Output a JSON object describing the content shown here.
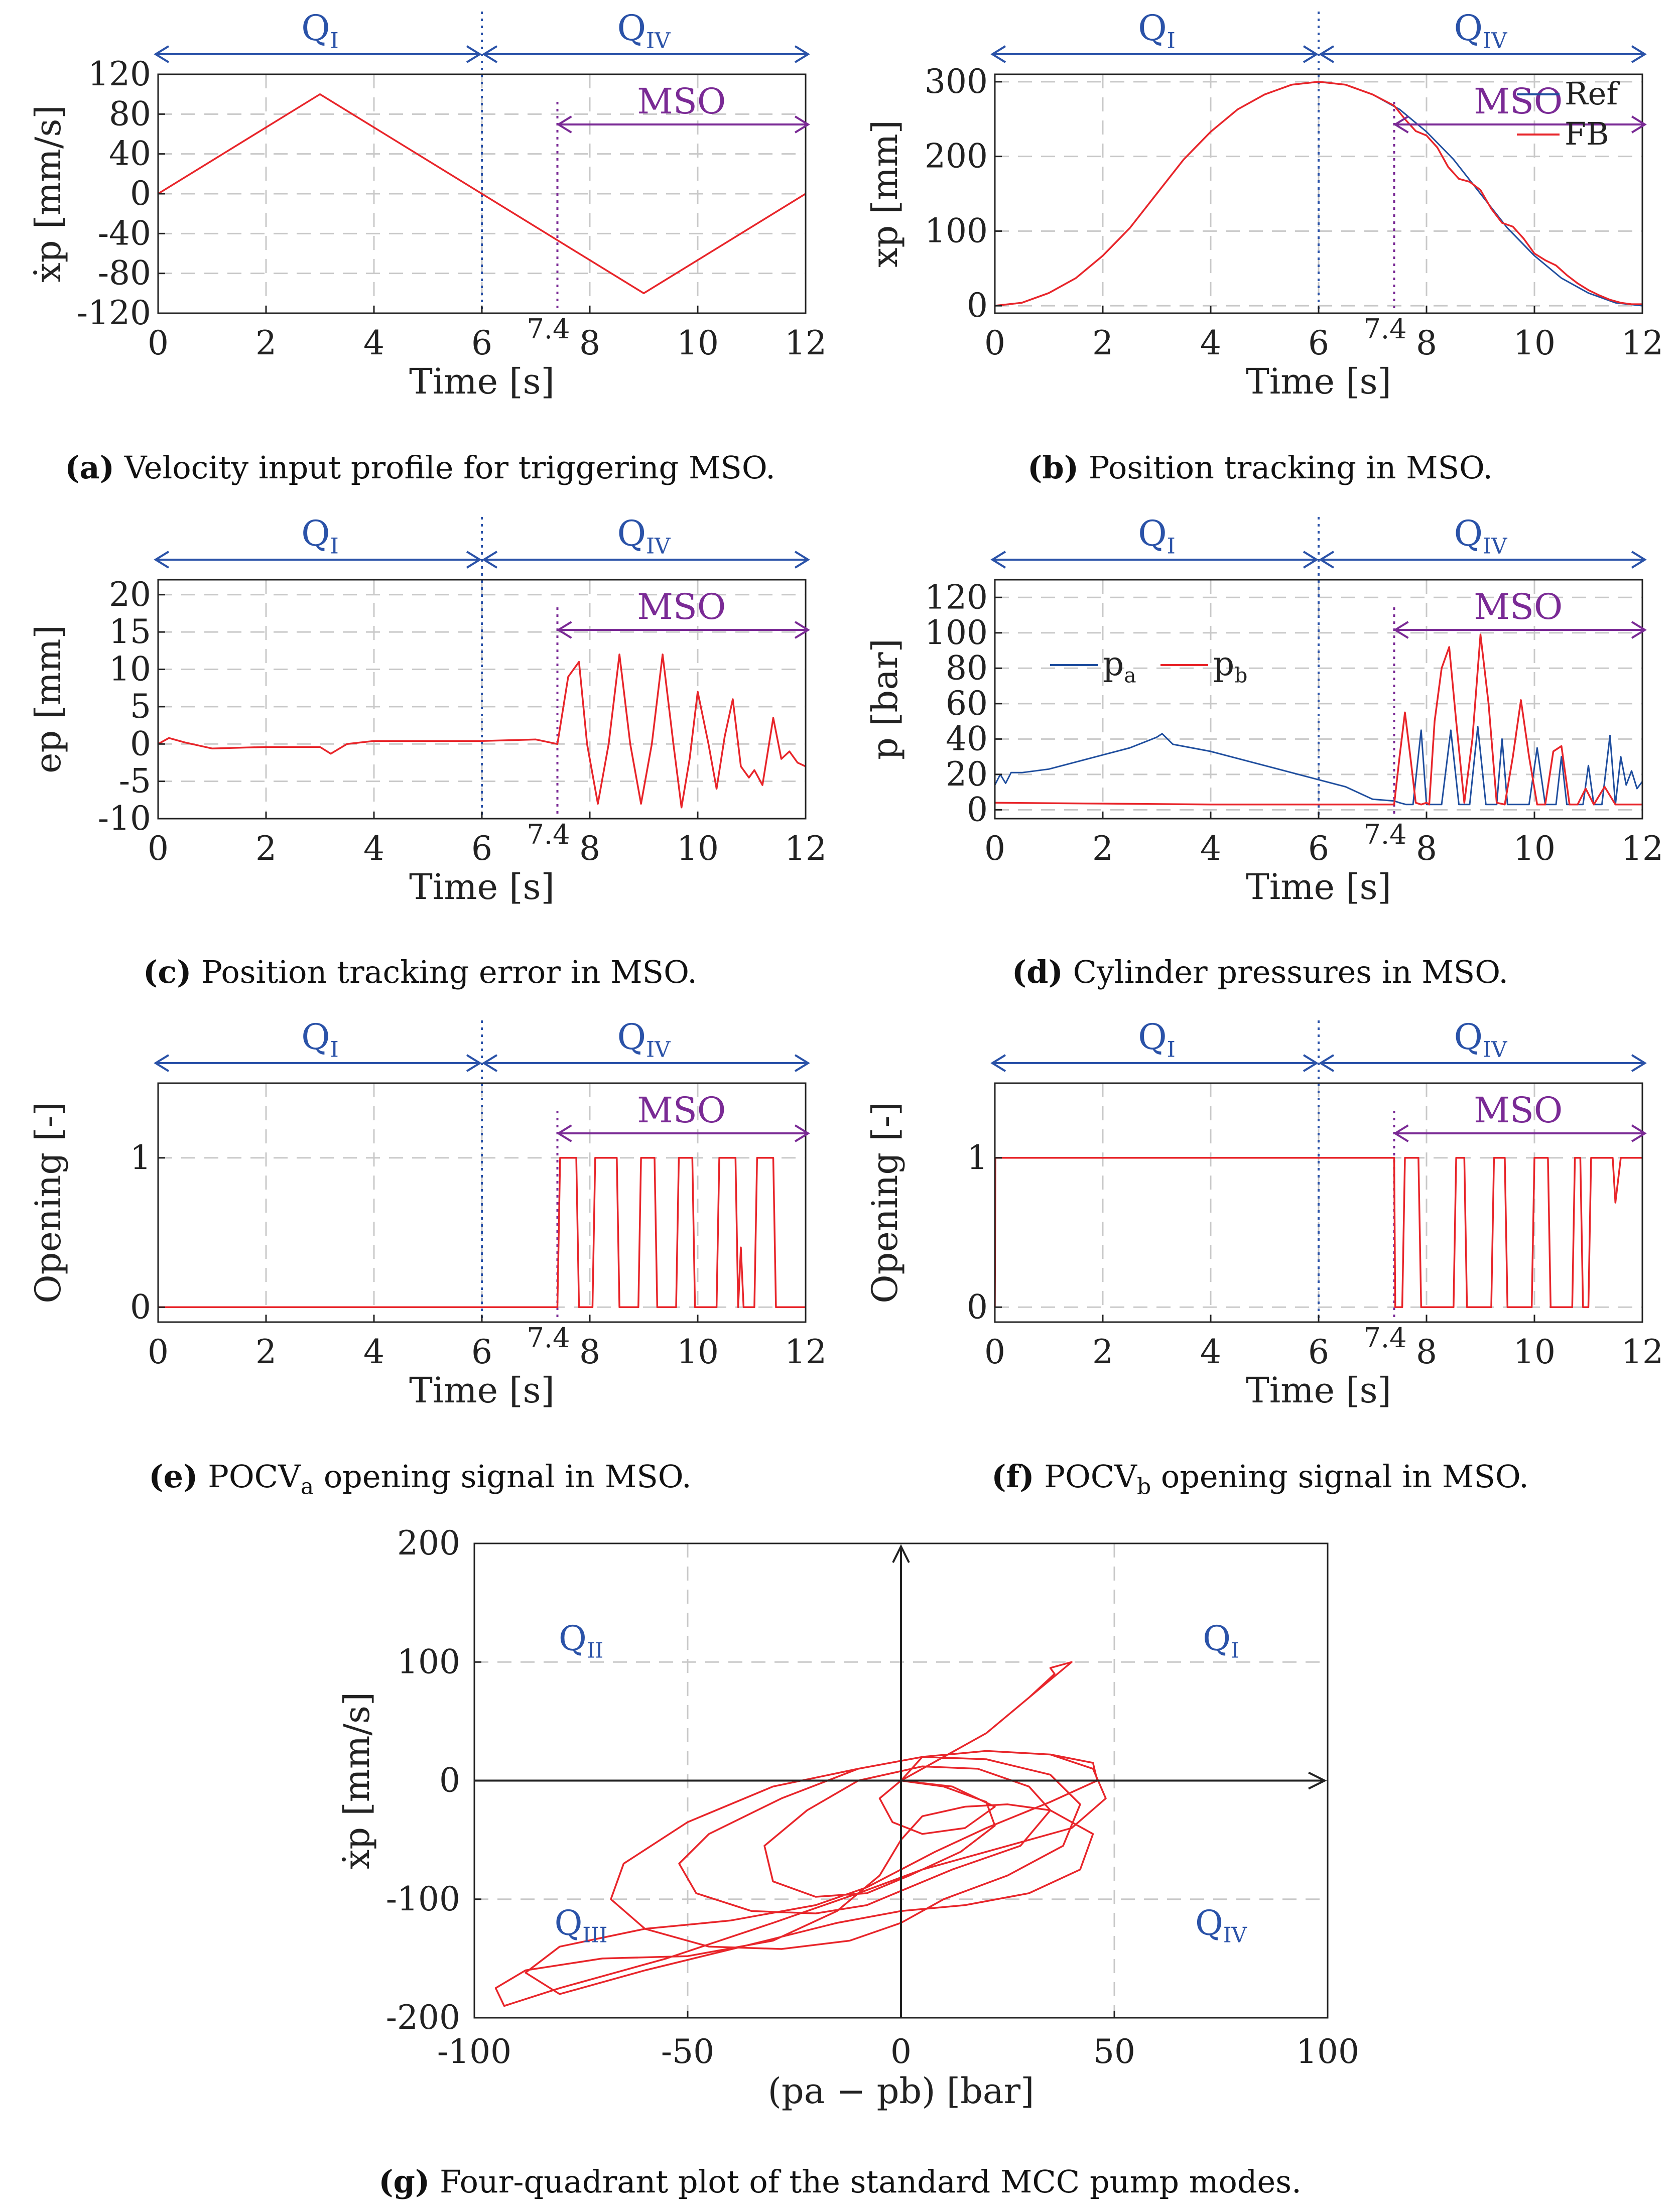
{
  "colors": {
    "series_red": "#e8252a",
    "series_blue": "#1f4e9e",
    "quadrant": "#2a52a8",
    "mso": "#7a2a95",
    "axis": "#222222",
    "grid": "#c8c8c8"
  },
  "common": {
    "time_label": "Time [s]",
    "mso_label": "MSO",
    "t_mso_label": "7.4",
    "x_ticks": [
      0,
      2,
      4,
      6,
      8,
      10,
      12
    ],
    "quadrant_left": {
      "main": "Q",
      "sub": "I"
    },
    "quadrant_right": {
      "main": "Q",
      "sub": "IV"
    }
  },
  "captions": {
    "a": {
      "label": "(a)",
      "text": "Velocity input profile for triggering MSO."
    },
    "b": {
      "label": "(b)",
      "text": "Position tracking in MSO."
    },
    "c": {
      "label": "(c)",
      "text": "Position tracking error in MSO."
    },
    "d": {
      "label": "(d)",
      "text": "Cylinder pressures in MSO."
    },
    "e": {
      "label": "(e)",
      "text_pre": "POCV",
      "sub": "a",
      "text_post": " opening signal in MSO."
    },
    "f": {
      "label": "(f)",
      "text_pre": "POCV",
      "sub": "b",
      "text_post": " opening signal in MSO."
    },
    "g": {
      "label": "(g)",
      "text": "Four-quadrant plot of the standard MCC pump modes."
    }
  },
  "chart_data": [
    {
      "id": "a",
      "type": "line",
      "ylabel": "ẋp [mm/s]",
      "xlim": [
        0,
        12
      ],
      "ylim": [
        -120,
        120
      ],
      "yticks": [
        -120,
        -80,
        -40,
        0,
        40,
        80,
        120
      ],
      "ytick_labels": [
        "-120",
        "-80",
        "-40",
        "0",
        "40",
        "80",
        "120"
      ],
      "series": [
        {
          "name": "velocity",
          "color": "red",
          "x": [
            0,
            3,
            9,
            12
          ],
          "y": [
            0,
            100,
            -100,
            0
          ]
        }
      ]
    },
    {
      "id": "b",
      "type": "line",
      "ylabel": "xp [mm]",
      "xlim": [
        0,
        12
      ],
      "ylim": [
        -10,
        310
      ],
      "yticks": [
        0,
        100,
        200,
        300
      ],
      "ytick_labels": [
        "0",
        "100",
        "200",
        "300"
      ],
      "legend": [
        "Ref",
        "FB"
      ],
      "series": [
        {
          "name": "Ref",
          "color": "blue",
          "x": [
            0,
            0.5,
            1,
            1.5,
            2,
            2.5,
            3,
            3.5,
            4,
            4.5,
            5,
            5.5,
            6,
            6.5,
            7,
            7.5,
            8,
            8.5,
            9,
            9.5,
            10,
            10.5,
            11,
            11.5,
            12
          ],
          "y": [
            0,
            4,
            17,
            37,
            67,
            104,
            150,
            196,
            233,
            263,
            283,
            296,
            300,
            296,
            283,
            263,
            233,
            196,
            150,
            104,
            67,
            37,
            17,
            4,
            0
          ]
        },
        {
          "name": "FB",
          "color": "red",
          "x": [
            0,
            0.5,
            1,
            1.5,
            2,
            2.5,
            3,
            3.5,
            4,
            4.5,
            5,
            5.5,
            6,
            6.5,
            7,
            7.4,
            7.6,
            7.8,
            8,
            8.2,
            8.4,
            8.6,
            8.8,
            9,
            9.2,
            9.4,
            9.6,
            9.8,
            10,
            10.2,
            10.4,
            10.6,
            10.8,
            11,
            11.2,
            11.4,
            11.6,
            11.8,
            12
          ],
          "y": [
            0,
            4,
            17,
            37,
            67,
            104,
            150,
            196,
            233,
            263,
            283,
            296,
            300,
            296,
            283,
            268,
            250,
            234,
            228,
            212,
            186,
            170,
            166,
            155,
            130,
            111,
            106,
            90,
            70,
            61,
            54,
            41,
            30,
            21,
            14,
            8,
            4,
            2,
            2
          ]
        }
      ]
    },
    {
      "id": "c",
      "type": "line",
      "ylabel": "ep [mm]",
      "xlim": [
        0,
        12
      ],
      "ylim": [
        -10,
        22
      ],
      "yticks": [
        -10,
        -5,
        0,
        5,
        10,
        15,
        20
      ],
      "ytick_labels": [
        "-10",
        "-5",
        "0",
        "5",
        "10",
        "15",
        "20"
      ],
      "series": [
        {
          "name": "error",
          "color": "red",
          "x": [
            0,
            0.2,
            0.5,
            1,
            2,
            3,
            3.2,
            3.5,
            4,
            5,
            6,
            6.5,
            7,
            7.4,
            7.6,
            7.8,
            7.95,
            8.15,
            8.35,
            8.55,
            8.75,
            8.95,
            9.15,
            9.35,
            9.55,
            9.7,
            9.85,
            10.0,
            10.2,
            10.35,
            10.5,
            10.65,
            10.8,
            10.95,
            11.05,
            11.2,
            11.4,
            11.55,
            11.7,
            11.85,
            12
          ],
          "y": [
            0,
            0.8,
            0.2,
            -0.6,
            -0.4,
            -0.4,
            -1.3,
            0,
            0.4,
            0.4,
            0.4,
            0.5,
            0.6,
            0,
            9,
            11,
            0,
            -8,
            0,
            12,
            0,
            -8,
            0,
            12,
            0,
            -8.5,
            -2,
            7,
            0,
            -6,
            1,
            6,
            -3,
            -4.5,
            -3.5,
            -5.5,
            3.5,
            -2,
            -1,
            -2.5,
            -3
          ]
        }
      ]
    },
    {
      "id": "d",
      "type": "line",
      "ylabel": "p [bar]",
      "xlim": [
        0,
        12
      ],
      "ylim": [
        -5,
        130
      ],
      "yticks": [
        0,
        20,
        40,
        60,
        80,
        100,
        120
      ],
      "ytick_labels": [
        "0",
        "20",
        "40",
        "60",
        "80",
        "100",
        "120"
      ],
      "legend": [
        "pa",
        "pb"
      ],
      "series": [
        {
          "name": "pa",
          "color": "blue",
          "x": [
            0,
            0.1,
            0.2,
            0.3,
            0.5,
            1,
            1.5,
            2,
            2.5,
            3,
            3.1,
            3.3,
            4,
            5,
            6,
            6.5,
            7,
            7.4,
            7.5,
            7.62,
            7.75,
            7.9,
            8.0,
            8.1,
            8.28,
            8.45,
            8.6,
            8.7,
            8.8,
            8.95,
            9.1,
            9.3,
            9.4,
            9.5,
            9.7,
            9.9,
            10.05,
            10.2,
            10.3,
            10.4,
            10.5,
            10.6,
            10.75,
            10.9,
            11,
            11.1,
            11.25,
            11.4,
            11.5,
            11.6,
            11.7,
            11.8,
            11.9,
            12
          ],
          "y": [
            14,
            20,
            15,
            21,
            21,
            23,
            27,
            31,
            35,
            41,
            43,
            37,
            33,
            25,
            17,
            13,
            6,
            5,
            4,
            3,
            3,
            45,
            3,
            3,
            3,
            45,
            3,
            3,
            3,
            47,
            3,
            3,
            40,
            3,
            3,
            3,
            35,
            3,
            3,
            3,
            30,
            3,
            3,
            3,
            25,
            3,
            3,
            42,
            3,
            30,
            14,
            22,
            12,
            16
          ]
        },
        {
          "name": "pb",
          "color": "red",
          "x": [
            0,
            2,
            4,
            6,
            7,
            7.4,
            7.5,
            7.6,
            7.7,
            7.8,
            7.9,
            8.0,
            8.05,
            8.15,
            8.28,
            8.42,
            8.55,
            8.7,
            8.85,
            9.0,
            9.15,
            9.3,
            9.45,
            9.6,
            9.75,
            9.9,
            10.05,
            10.2,
            10.35,
            10.5,
            10.65,
            10.8,
            10.95,
            11.1,
            11.3,
            11.5,
            12
          ],
          "y": [
            4,
            3.5,
            3,
            3,
            3,
            3,
            30,
            55,
            30,
            4,
            3,
            4,
            3,
            50,
            80,
            92,
            50,
            4,
            40,
            99,
            60,
            4,
            3,
            30,
            62,
            30,
            3,
            3,
            33,
            36,
            3,
            3,
            12,
            3,
            13,
            3,
            3
          ]
        }
      ]
    },
    {
      "id": "e",
      "type": "line",
      "ylabel": "Opening [-]",
      "xlim": [
        0,
        12
      ],
      "ylim": [
        -0.1,
        1.5
      ],
      "yticks": [
        0,
        1
      ],
      "ytick_labels": [
        "0",
        "1"
      ],
      "series": [
        {
          "name": "POCVa",
          "color": "red",
          "x": [
            0,
            7.4,
            7.45,
            7.75,
            7.8,
            8.05,
            8.1,
            8.5,
            8.55,
            8.9,
            8.95,
            9.2,
            9.25,
            9.6,
            9.65,
            9.9,
            9.95,
            10.35,
            10.4,
            10.7,
            10.75,
            10.8,
            10.85,
            10.9,
            11.05,
            11.1,
            11.4,
            11.45,
            12
          ],
          "y": [
            0,
            0,
            1,
            1,
            0,
            0,
            1,
            1,
            0,
            0,
            1,
            1,
            0,
            0,
            1,
            1,
            0,
            0,
            1,
            1,
            0,
            0.4,
            0,
            0,
            0,
            1,
            1,
            0,
            0
          ]
        }
      ]
    },
    {
      "id": "f",
      "type": "line",
      "ylabel": "Opening [-]",
      "xlim": [
        0,
        12
      ],
      "ylim": [
        -0.1,
        1.5
      ],
      "yticks": [
        0,
        1
      ],
      "ytick_labels": [
        "0",
        "1"
      ],
      "series": [
        {
          "name": "POCVb",
          "color": "red",
          "x": [
            0,
            0.01,
            7.4,
            7.42,
            7.55,
            7.6,
            7.85,
            7.9,
            8.5,
            8.55,
            8.7,
            8.75,
            9.2,
            9.25,
            9.45,
            9.5,
            9.95,
            10.0,
            10.25,
            10.3,
            10.7,
            10.75,
            10.85,
            10.9,
            11.0,
            11.05,
            11.45,
            11.5,
            11.6,
            11.65,
            12
          ],
          "y": [
            0,
            1,
            1,
            0,
            0,
            1,
            1,
            0,
            0,
            1,
            1,
            0,
            0,
            1,
            1,
            0,
            0,
            1,
            1,
            0,
            0,
            1,
            1,
            0,
            0,
            1,
            1,
            0.7,
            1,
            1,
            1
          ]
        }
      ]
    },
    {
      "id": "g",
      "type": "line",
      "xlabel": "(pa − pb) [bar]",
      "ylabel": "ẋp [mm/s]",
      "xlim": [
        -100,
        100
      ],
      "ylim": [
        -200,
        200
      ],
      "xticks": [
        -100,
        -50,
        0,
        50,
        100
      ],
      "xtick_labels": [
        "-100",
        "-50",
        "0",
        "50",
        "100"
      ],
      "yticks": [
        -200,
        -100,
        0,
        100,
        200
      ],
      "ytick_labels": [
        "-200",
        "-100",
        "0",
        "100",
        "200"
      ],
      "quadrants": [
        {
          "main": "Q",
          "sub": "II",
          "x": -75,
          "y": 110
        },
        {
          "main": "Q",
          "sub": "I",
          "x": 75,
          "y": 110
        },
        {
          "main": "Q",
          "sub": "III",
          "x": -75,
          "y": -130
        },
        {
          "main": "Q",
          "sub": "IV",
          "x": 75,
          "y": -130
        }
      ],
      "series": [
        {
          "name": "trajectory",
          "color": "red",
          "x": [
            0,
            20,
            40,
            38,
            35,
            36,
            30,
            20,
            10,
            0,
            5,
            20,
            35,
            45,
            48,
            40,
            20,
            5,
            -10,
            -30,
            -55,
            -80,
            -93,
            -95,
            -88,
            -70,
            -50,
            -30,
            -15,
            -5,
            0,
            5,
            15,
            25,
            35,
            45,
            42,
            30,
            15,
            0,
            -15,
            -35,
            -60,
            -80,
            -88,
            -80,
            -60,
            -40,
            -20,
            -8,
            0,
            8,
            20,
            35,
            46,
            45,
            35,
            20,
            5,
            -10,
            -30,
            -50,
            -65,
            -68,
            -60,
            -45,
            -28,
            -12,
            0,
            10,
            25,
            38,
            42,
            35,
            20,
            5,
            -10,
            -28,
            -45,
            -52,
            -48,
            -35,
            -20,
            -8,
            2,
            12,
            28,
            35,
            30,
            18,
            5,
            -10,
            -22,
            -32,
            -30,
            -20,
            -8,
            2,
            14,
            22,
            20,
            10,
            0,
            -5,
            -2,
            5,
            15,
            22,
            12,
            0
          ],
          "y": [
            0,
            40,
            100,
            98,
            95,
            90,
            70,
            40,
            20,
            0,
            20,
            25,
            22,
            10,
            -15,
            -40,
            -60,
            -75,
            -95,
            -120,
            -150,
            -175,
            -190,
            -175,
            -160,
            -150,
            -148,
            -135,
            -110,
            -80,
            -50,
            -30,
            -22,
            -20,
            -25,
            -45,
            -75,
            -95,
            -105,
            -110,
            -120,
            -138,
            -160,
            -180,
            -162,
            -140,
            -125,
            -118,
            -105,
            -90,
            -75,
            -60,
            -40,
            -18,
            0,
            15,
            22,
            25,
            20,
            10,
            -5,
            -35,
            -70,
            -100,
            -125,
            -140,
            -142,
            -135,
            -120,
            -100,
            -80,
            -55,
            -20,
            5,
            18,
            20,
            10,
            -15,
            -45,
            -70,
            -95,
            -110,
            -112,
            -105,
            -90,
            -75,
            -55,
            -25,
            -5,
            10,
            12,
            0,
            -25,
            -55,
            -85,
            -98,
            -95,
            -80,
            -60,
            -38,
            -18,
            -5,
            0,
            -15,
            -35,
            -45,
            -40,
            -22,
            -5,
            0
          ]
        }
      ]
    }
  ]
}
